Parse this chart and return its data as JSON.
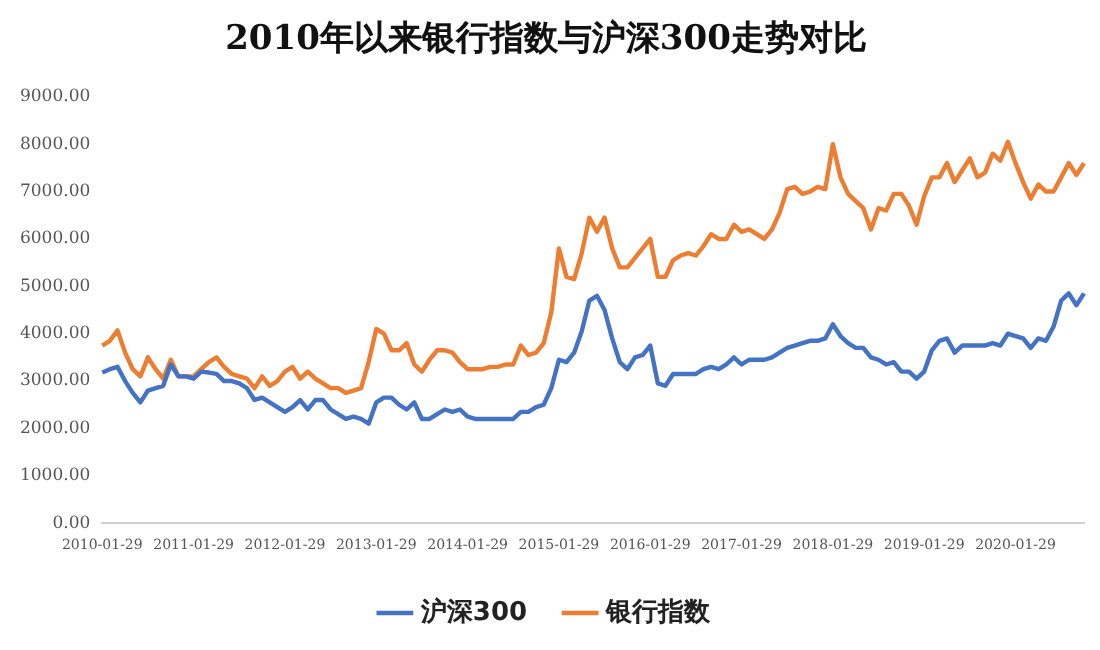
{
  "chart_data": {
    "type": "line",
    "title": "2010年以来银行指数与沪深300走势对比",
    "categories": [
      "2010-01-29",
      null,
      null,
      null,
      null,
      null,
      null,
      null,
      null,
      null,
      null,
      null,
      "2011-01-29",
      null,
      null,
      null,
      null,
      null,
      null,
      null,
      null,
      null,
      null,
      null,
      "2012-01-29",
      null,
      null,
      null,
      null,
      null,
      null,
      null,
      null,
      null,
      null,
      null,
      "2013-01-29",
      null,
      null,
      null,
      null,
      null,
      null,
      null,
      null,
      null,
      null,
      null,
      "2014-01-29",
      null,
      null,
      null,
      null,
      null,
      null,
      null,
      null,
      null,
      null,
      null,
      "2015-01-29",
      null,
      null,
      null,
      null,
      null,
      null,
      null,
      null,
      null,
      null,
      null,
      "2016-01-29",
      null,
      null,
      null,
      null,
      null,
      null,
      null,
      null,
      null,
      null,
      null,
      "2017-01-29",
      null,
      null,
      null,
      null,
      null,
      null,
      null,
      null,
      null,
      null,
      null,
      "2018-01-29",
      null,
      null,
      null,
      null,
      null,
      null,
      null,
      null,
      null,
      null,
      null,
      "2019-01-29",
      null,
      null,
      null,
      null,
      null,
      null,
      null,
      null,
      null,
      null,
      null,
      "2020-01-29",
      null,
      null,
      null,
      null,
      null,
      null,
      null,
      null,
      null
    ],
    "series": [
      {
        "name": "沪深300",
        "color": "#4472c4",
        "values": [
          3180,
          3250,
          3300,
          3000,
          2750,
          2550,
          2800,
          2850,
          2900,
          3350,
          3100,
          3100,
          3050,
          3200,
          3180,
          3150,
          3000,
          3000,
          2950,
          2850,
          2600,
          2650,
          2550,
          2450,
          2350,
          2450,
          2600,
          2400,
          2600,
          2600,
          2400,
          2300,
          2200,
          2250,
          2200,
          2100,
          2550,
          2650,
          2650,
          2500,
          2400,
          2550,
          2200,
          2200,
          2300,
          2400,
          2350,
          2400,
          2250,
          2200,
          2200,
          2200,
          2200,
          2200,
          2200,
          2350,
          2350,
          2450,
          2500,
          2850,
          3450,
          3400,
          3600,
          4050,
          4700,
          4800,
          4500,
          3900,
          3400,
          3250,
          3500,
          3550,
          3750,
          2950,
          2900,
          3150,
          3150,
          3150,
          3150,
          3250,
          3300,
          3250,
          3350,
          3500,
          3350,
          3450,
          3450,
          3450,
          3500,
          3600,
          3700,
          3750,
          3800,
          3850,
          3850,
          3900,
          4200,
          3950,
          3800,
          3700,
          3700,
          3500,
          3450,
          3350,
          3400,
          3200,
          3200,
          3050,
          3200,
          3650,
          3850,
          3900,
          3600,
          3750,
          3750,
          3750,
          3750,
          3800,
          3750,
          4000,
          3950,
          3900,
          3700,
          3900,
          3850,
          4150,
          4700,
          4850,
          4600,
          4850
        ]
      },
      {
        "name": "银行指数",
        "color": "#ed7d31",
        "values": [
          3750,
          3850,
          4070,
          3600,
          3250,
          3100,
          3500,
          3250,
          3050,
          3450,
          3100,
          3100,
          3100,
          3250,
          3400,
          3500,
          3300,
          3150,
          3100,
          3050,
          2850,
          3100,
          2900,
          3000,
          3200,
          3300,
          3050,
          3200,
          3050,
          2950,
          2850,
          2850,
          2750,
          2800,
          2850,
          3400,
          4100,
          4000,
          3650,
          3650,
          3800,
          3350,
          3200,
          3450,
          3650,
          3650,
          3600,
          3400,
          3250,
          3250,
          3250,
          3300,
          3300,
          3350,
          3350,
          3750,
          3550,
          3600,
          3800,
          4450,
          5800,
          5200,
          5150,
          5700,
          6450,
          6150,
          6450,
          5800,
          5400,
          5400,
          5600,
          5800,
          6000,
          5200,
          5200,
          5550,
          5650,
          5700,
          5650,
          5850,
          6100,
          6000,
          6000,
          6300,
          6150,
          6200,
          6100,
          6000,
          6200,
          6550,
          7050,
          7100,
          6950,
          7000,
          7100,
          7050,
          8000,
          7300,
          6950,
          6800,
          6650,
          6200,
          6650,
          6600,
          6950,
          6950,
          6700,
          6300,
          6900,
          7300,
          7300,
          7600,
          7200,
          7450,
          7700,
          7300,
          7400,
          7800,
          7650,
          8050,
          7600,
          7200,
          6850,
          7150,
          7000,
          7000,
          7300,
          7600,
          7350,
          7600
        ]
      }
    ],
    "ylim": [
      0,
      9000
    ],
    "yticks": [
      {
        "value": 0,
        "label": "0.00"
      },
      {
        "value": 1000,
        "label": "1000.00"
      },
      {
        "value": 2000,
        "label": "2000.00"
      },
      {
        "value": 3000,
        "label": "3000.00"
      },
      {
        "value": 4000,
        "label": "4000.00"
      },
      {
        "value": 5000,
        "label": "5000.00"
      },
      {
        "value": 6000,
        "label": "6000.00"
      },
      {
        "value": 7000,
        "label": "7000.00"
      },
      {
        "value": 8000,
        "label": "8000.00"
      },
      {
        "value": 9000,
        "label": "9000.00"
      }
    ],
    "grid": false,
    "legend": "bottom",
    "marker": "none",
    "line_style": "solid"
  }
}
